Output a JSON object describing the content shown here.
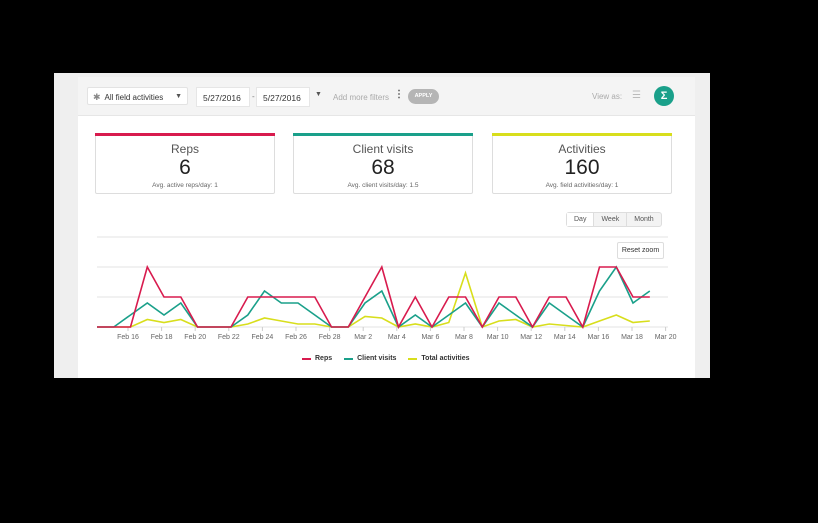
{
  "toolbar": {
    "activity_filter": "All field activities",
    "date_from": "5/27/2016",
    "date_separator": "-",
    "date_to": "5/27/2016",
    "add_filters": "Add more filters",
    "apply": "APPLY",
    "view_as": "View as:",
    "list_icon": "list-icon",
    "sigma_icon": "Σ"
  },
  "cards": [
    {
      "title": "Reps",
      "value": "6",
      "sub": "Avg. active reps/day: 1",
      "color": "#d81b4e"
    },
    {
      "title": "Client visits",
      "value": "68",
      "sub": "Avg. client visits/day: 1.5",
      "color": "#1aa08a"
    },
    {
      "title": "Activities",
      "value": "160",
      "sub": "Avg. field activities/day: 1",
      "color": "#d8de1c"
    }
  ],
  "range_buttons": [
    "Day",
    "Week",
    "Month"
  ],
  "reset_zoom": "Reset zoom",
  "chart_data": {
    "type": "line",
    "title": "",
    "xlabel": "",
    "ylabel": "",
    "ylim": [
      0,
      3
    ],
    "grid": true,
    "legend_position": "bottom",
    "x_tick_labels": [
      "Feb 16",
      "Feb 18",
      "Feb 20",
      "Feb 22",
      "Feb 24",
      "Feb 26",
      "Feb 28",
      "Mar 2",
      "Mar 4",
      "Mar 6",
      "Mar 8",
      "Mar 10",
      "Mar 12",
      "Mar 14",
      "Mar 16",
      "Mar 18",
      "Mar 20"
    ],
    "x": [
      "Feb 14",
      "Feb 15",
      "Feb 16",
      "Feb 17",
      "Feb 18",
      "Feb 19",
      "Feb 20",
      "Feb 21",
      "Feb 22",
      "Feb 23",
      "Feb 24",
      "Feb 25",
      "Feb 26",
      "Feb 27",
      "Feb 28",
      "Feb 29",
      "Mar 1",
      "Mar 2",
      "Mar 3",
      "Mar 4",
      "Mar 5",
      "Mar 6",
      "Mar 7",
      "Mar 8",
      "Mar 9",
      "Mar 10",
      "Mar 11",
      "Mar 12",
      "Mar 13",
      "Mar 14",
      "Mar 15",
      "Mar 16",
      "Mar 17",
      "Mar 18"
    ],
    "series": [
      {
        "name": "Reps",
        "color": "#d81b4e",
        "values": [
          0,
          0,
          0,
          2,
          1,
          1,
          0,
          0,
          0,
          1,
          1,
          1,
          1,
          1,
          0,
          0,
          1,
          2,
          0,
          1,
          0,
          1,
          1,
          0,
          1,
          1,
          0,
          1,
          1,
          0,
          2,
          2,
          1,
          1
        ]
      },
      {
        "name": "Client visits",
        "color": "#1aa08a",
        "values": [
          0,
          0,
          0.4,
          0.8,
          0.4,
          0.8,
          0,
          0,
          0,
          0.4,
          1.2,
          0.8,
          0.8,
          0.4,
          0,
          0,
          0.8,
          1.2,
          0,
          0.4,
          0,
          0.4,
          0.8,
          0,
          0.8,
          0.4,
          0,
          0.8,
          0.4,
          0,
          1.2,
          2,
          0.8,
          1.2
        ]
      },
      {
        "name": "Total activities",
        "color": "#d8de1c",
        "values": [
          0,
          0,
          0,
          0.25,
          0.15,
          0.25,
          0,
          0,
          0,
          0.1,
          0.3,
          0.2,
          0.1,
          0.1,
          0,
          0,
          0.35,
          0.3,
          0,
          0.1,
          0,
          0.15,
          1.8,
          0,
          0.2,
          0.25,
          0,
          0.1,
          0.05,
          0,
          0.2,
          0.4,
          0.15,
          0.2
        ]
      }
    ]
  }
}
